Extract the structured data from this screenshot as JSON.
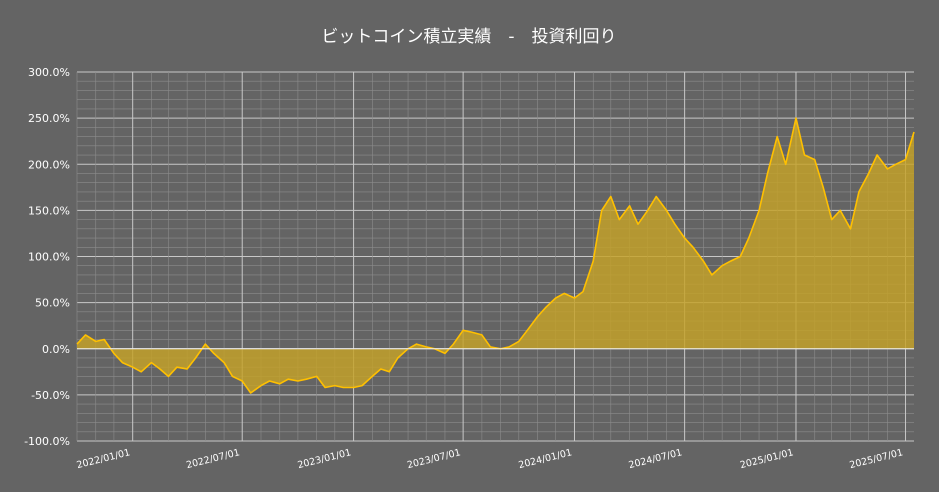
{
  "chart_data": {
    "type": "area",
    "title": "ビットコイン積立実績　-　投資利回り",
    "xlabel": "",
    "ylabel": "",
    "ylim": [
      -100,
      300
    ],
    "y_tick_labels": [
      "300.0%",
      "250.0%",
      "200.0%",
      "150.0%",
      "100.0%",
      "50.0%",
      "0.0%",
      "-50.0%",
      "-100.0%"
    ],
    "y_tick_values": [
      300,
      250,
      200,
      150,
      100,
      50,
      0,
      -50,
      -100
    ],
    "x_tick_labels": [
      "2022/01/01",
      "2022/07/01",
      "2023/01/01",
      "2023/07/01",
      "2024/01/01",
      "2024/07/01",
      "2025/01/01",
      "2025/07/01"
    ],
    "grid": true,
    "legend": "none",
    "colors": {
      "background": "#646464",
      "line": "#ffc000",
      "fill": "#c6a227",
      "grid": "#9a9a9a"
    },
    "series": [
      {
        "x": [
          "2021/10/01",
          "2021/10/15",
          "2021/11/01",
          "2021/11/15",
          "2021/12/01",
          "2021/12/15",
          "2022/01/01",
          "2022/01/15",
          "2022/02/01",
          "2022/02/15",
          "2022/03/01",
          "2022/03/15",
          "2022/04/01",
          "2022/04/15",
          "2022/05/01",
          "2022/05/15",
          "2022/06/01",
          "2022/06/15",
          "2022/07/01",
          "2022/07/15",
          "2022/08/01",
          "2022/08/15",
          "2022/09/01",
          "2022/09/15",
          "2022/10/01",
          "2022/10/15",
          "2022/11/01",
          "2022/11/15",
          "2022/12/01",
          "2022/12/15",
          "2023/01/01",
          "2023/01/15",
          "2023/02/01",
          "2023/02/15",
          "2023/03/01",
          "2023/03/15",
          "2023/04/01",
          "2023/04/15",
          "2023/05/01",
          "2023/05/15",
          "2023/06/01",
          "2023/06/15",
          "2023/07/01",
          "2023/07/15",
          "2023/08/01",
          "2023/08/15",
          "2023/09/01",
          "2023/09/15",
          "2023/10/01",
          "2023/10/15",
          "2023/11/01",
          "2023/11/15",
          "2023/12/01",
          "2023/12/15",
          "2024/01/01",
          "2024/01/15",
          "2024/02/01",
          "2024/02/15",
          "2024/03/01",
          "2024/03/15",
          "2024/04/01",
          "2024/04/15",
          "2024/05/01",
          "2024/05/15",
          "2024/06/01",
          "2024/06/15",
          "2024/07/01",
          "2024/07/15",
          "2024/08/01",
          "2024/08/15",
          "2024/09/01",
          "2024/09/15",
          "2024/10/01",
          "2024/10/15",
          "2024/11/01",
          "2024/11/15",
          "2024/12/01",
          "2024/12/15",
          "2025/01/01",
          "2025/01/15",
          "2025/02/01",
          "2025/02/15",
          "2025/03/01",
          "2025/03/15",
          "2025/04/01",
          "2025/04/15",
          "2025/05/01",
          "2025/05/15",
          "2025/06/01",
          "2025/06/15",
          "2025/07/01",
          "2025/07/15"
        ],
        "values": [
          5,
          15,
          8,
          10,
          -5,
          -15,
          -20,
          -25,
          -15,
          -22,
          -30,
          -20,
          -22,
          -10,
          5,
          -5,
          -15,
          -30,
          -35,
          -48,
          -40,
          -35,
          -38,
          -33,
          -35,
          -33,
          -30,
          -42,
          -40,
          -42,
          -42,
          -40,
          -30,
          -22,
          -25,
          -10,
          0,
          5,
          2,
          0,
          -5,
          5,
          20,
          18,
          15,
          2,
          0,
          2,
          8,
          20,
          35,
          45,
          55,
          60,
          55,
          62,
          95,
          150,
          165,
          140,
          155,
          135,
          150,
          165,
          150,
          135,
          120,
          110,
          95,
          80,
          90,
          95,
          100,
          120,
          150,
          190,
          230,
          200,
          250,
          210,
          205,
          175,
          140,
          150,
          130,
          170,
          190,
          210,
          195,
          200,
          205,
          235
        ]
      }
    ]
  }
}
